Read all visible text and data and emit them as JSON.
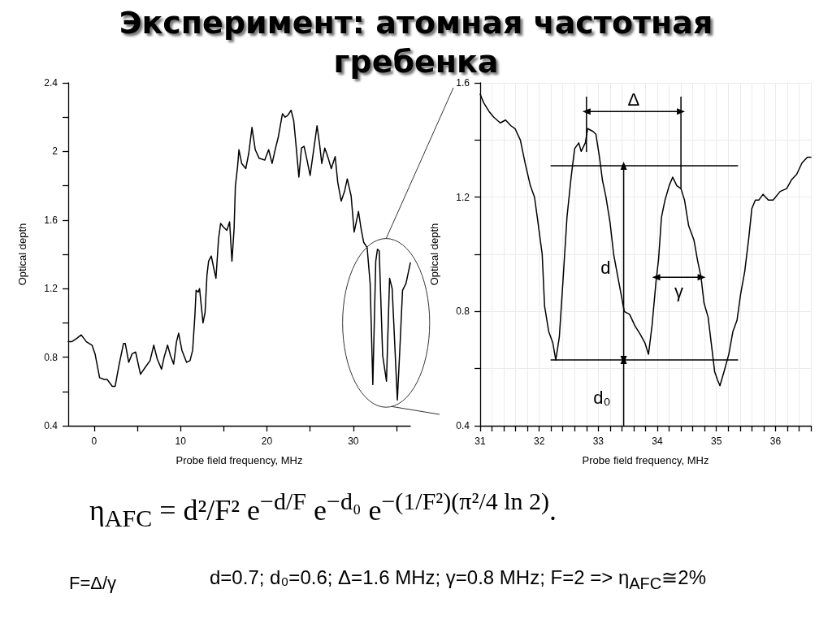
{
  "chart_data": [
    {
      "type": "line",
      "title": "Эксперимент: атомная частотная гребенка",
      "xlabel": "Probe field frequency, MHz",
      "ylabel": "Optical depth",
      "color": "#000000",
      "marker": "none",
      "grid": false,
      "x": [
        -3,
        -2.6,
        -2,
        -1.5,
        -0.9,
        -0.25,
        0.1,
        0.63,
        1.17,
        1.5,
        2.1,
        2.43,
        2.9,
        3.4,
        3.6,
        4,
        4.4,
        4.8,
        5.36,
        5.9,
        6.47,
        6.9,
        7.3,
        7.8,
        8.1,
        8.5,
        8.83,
        9.2,
        9.53,
        9.78,
        10.16,
        10.7,
        11.1,
        11.4,
        11.67,
        11.8,
        12.05,
        12.2,
        12.6,
        12.84,
        13.06,
        13.25,
        13.56,
        13.8,
        14.1,
        14.4,
        14.64,
        14.95,
        15.36,
        15.68,
        15.95,
        16.2,
        16.35,
        16.6,
        16.76,
        17.08,
        17.55,
        17.9,
        18.27,
        18.65,
        19.1,
        19.75,
        20.2,
        20.6,
        21,
        21.3,
        21.8,
        22.1,
        22.4,
        22.8,
        23.1,
        23.4,
        23.7,
        24,
        24.3,
        24.6,
        25,
        25.5,
        25.8,
        26.1,
        26.35,
        26.7,
        27.1,
        27.45,
        27.9,
        28.2,
        28.6,
        29,
        29.3,
        29.75,
        30.1,
        30.6,
        30.9,
        31.2,
        31.6,
        31.95,
        32.26,
        32.6,
        32.8,
        33,
        33.4,
        33.84,
        34.2,
        34.5,
        35.1,
        35.4,
        35.7,
        36.1,
        36.6
      ],
      "values": [
        0.89,
        0.89,
        0.91,
        0.93,
        0.89,
        0.87,
        0.82,
        0.68,
        0.67,
        0.67,
        0.63,
        0.63,
        0.76,
        0.88,
        0.88,
        0.77,
        0.82,
        0.83,
        0.7,
        0.74,
        0.78,
        0.87,
        0.79,
        0.73,
        0.8,
        0.87,
        0.81,
        0.76,
        0.89,
        0.94,
        0.84,
        0.77,
        0.78,
        0.84,
        1.05,
        1.19,
        1.18,
        1.2,
        1.0,
        1.06,
        1.28,
        1.36,
        1.39,
        1.33,
        1.26,
        1.49,
        1.58,
        1.56,
        1.54,
        1.59,
        1.36,
        1.55,
        1.8,
        1.91,
        2.01,
        1.93,
        1.9,
        1.99,
        2.14,
        2.01,
        1.96,
        1.95,
        2.01,
        1.93,
        2.02,
        2.08,
        2.22,
        2.2,
        2.21,
        2.24,
        2.18,
        2.02,
        1.85,
        2.02,
        2.03,
        1.96,
        1.86,
        2.04,
        2.15,
        2.04,
        1.93,
        2.02,
        1.96,
        1.9,
        1.97,
        1.82,
        1.71,
        1.77,
        1.84,
        1.74,
        1.53,
        1.65,
        1.55,
        1.47,
        1.44,
        1.23,
        0.64,
        1.36,
        1.43,
        1.42,
        0.81,
        0.66,
        1.26,
        1.2,
        0.55,
        0.86,
        1.19,
        1.23,
        1.35
      ],
      "xlim": [
        -3,
        36.6
      ],
      "ylim": [
        0.4,
        2.4
      ],
      "xticks": [
        0,
        {
          "value": 5,
          "label": null
        },
        10,
        {
          "value": 15,
          "label": null
        },
        20,
        {
          "value": 25,
          "label": null
        },
        30,
        {
          "value": 35,
          "label": null
        }
      ],
      "yticks": [
        0.4,
        {
          "value": 0.6,
          "label": null
        },
        0.8,
        {
          "value": 1,
          "label": null
        },
        1.2,
        {
          "value": 1.4,
          "label": null
        },
        1.6,
        {
          "value": 1.8,
          "label": null
        },
        2,
        {
          "value": 2.2,
          "label": null
        },
        2.4
      ]
    },
    {
      "type": "line",
      "xlabel": "Probe field frequency, MHz",
      "ylabel": "Optical depth",
      "marker": "none",
      "grid": true,
      "annotations": [
        "Δ",
        "d",
        "d₀",
        "γ",
        "η$_{AFC}$ = d²/F² e$^{−d/F}$ e$^{−d₀}$ e$^{−(1/F²)(π²/4 ln 2)}$.",
        "F=Δ/γ",
        "d=0.7; d₀=0.6; Δ=1.6 MHz; γ=0.8 MHz; F=2 =>  η$_{AFC}$≅2%"
      ],
      "x": [
        31,
        31.06,
        31.15,
        31.23,
        31.34,
        31.43,
        31.52,
        31.59,
        31.68,
        31.76,
        31.85,
        31.92,
        31.98,
        32.05,
        32.09,
        32.16,
        32.23,
        32.28,
        32.34,
        32.4,
        32.47,
        32.54,
        32.6,
        32.67,
        32.71,
        32.78,
        32.82,
        32.91,
        32.96,
        33.02,
        33.07,
        33.13,
        33.2,
        33.26,
        33.35,
        33.44,
        33.53,
        33.62,
        33.71,
        33.79,
        33.85,
        33.91,
        33.98,
        34.02,
        34.07,
        34.13,
        34.2,
        34.26,
        34.33,
        34.4,
        34.46,
        34.53,
        34.62,
        34.68,
        34.74,
        34.79,
        34.86,
        34.93,
        34.97,
        35.02,
        35.06,
        35.13,
        35.21,
        35.28,
        35.35,
        35.41,
        35.48,
        35.55,
        35.6,
        35.66,
        35.72,
        35.79,
        35.88,
        35.96,
        36.08,
        36.19,
        36.27,
        36.36,
        36.45,
        36.54,
        36.6
      ],
      "series": [
        {
          "color": "#000000",
          "values": [
            1.56,
            1.53,
            1.5,
            1.48,
            1.46,
            1.47,
            1.45,
            1.44,
            1.4,
            1.32,
            1.24,
            1.2,
            1.11,
            1.0,
            0.82,
            0.73,
            0.69,
            0.63,
            0.71,
            0.9,
            1.13,
            1.27,
            1.37,
            1.39,
            1.36,
            1.39,
            1.44,
            1.43,
            1.42,
            1.34,
            1.26,
            1.2,
            1.11,
            1.0,
            0.9,
            0.8,
            0.79,
            0.75,
            0.72,
            0.69,
            0.65,
            0.75,
            0.91,
            0.98,
            1.13,
            1.19,
            1.24,
            1.27,
            1.24,
            1.23,
            1.19,
            1.1,
            1.05,
            0.98,
            0.92,
            0.83,
            0.78,
            0.66,
            0.59,
            0.56,
            0.54,
            0.59,
            0.65,
            0.73,
            0.77,
            0.86,
            0.94,
            1.06,
            1.16,
            1.19,
            1.19,
            1.21,
            1.19,
            1.19,
            1.22,
            1.23,
            1.26,
            1.28,
            1.32,
            1.34,
            1.34
          ]
        },
        {
          "type": "line",
          "color": "#000000",
          "x": [
            32.2,
            35.36
          ],
          "values": [
            1.31,
            1.31
          ]
        },
        {
          "type": "line",
          "color": "#000000",
          "x": [
            32.2,
            35.36
          ],
          "values": [
            0.63,
            0.63
          ]
        },
        {
          "type": "line",
          "color": "#000000",
          "x": [
            32.8,
            32.8
          ],
          "values": [
            1.36,
            1.55
          ]
        },
        {
          "type": "line",
          "color": "#000000",
          "x": [
            34.4,
            34.4
          ],
          "values": [
            1.23,
            1.55
          ]
        },
        {
          "type": "line",
          "color": "#000000",
          "marker": "triangle",
          "x": [
            32.8,
            34.4
          ],
          "values": [
            1.5,
            1.5
          ]
        },
        {
          "type": "line",
          "color": "#000000",
          "marker": "triangle",
          "x": [
            33.43,
            33.43
          ],
          "values": [
            0.63,
            1.31
          ]
        },
        {
          "type": "line",
          "color": "#000000",
          "marker": "triangle",
          "x": [
            33.43,
            33.43
          ],
          "values": [
            0.4,
            0.63
          ]
        },
        {
          "type": "line",
          "color": "#000000",
          "marker": "triangle",
          "x": [
            33.98,
            34.75
          ],
          "values": [
            0.92,
            0.92
          ]
        }
      ],
      "xlim": [
        31,
        36.6
      ],
      "ylim": [
        0.4,
        1.6
      ],
      "xticks": [
        31,
        {
          "value": 31.2,
          "label": null
        },
        {
          "value": 31.4,
          "label": null
        },
        {
          "value": 31.6,
          "label": null
        },
        {
          "value": 31.8,
          "label": null
        },
        32,
        {
          "value": 32.2,
          "label": null
        },
        {
          "value": 32.4,
          "label": null
        },
        {
          "value": 32.6,
          "label": null
        },
        {
          "value": 32.8,
          "label": null
        },
        33,
        {
          "value": 33.2,
          "label": null
        },
        {
          "value": 33.4,
          "label": null
        },
        {
          "value": 33.6,
          "label": null
        },
        {
          "value": 33.8,
          "label": null
        },
        34,
        {
          "value": 34.2,
          "label": null
        },
        {
          "value": 34.4,
          "label": null
        },
        {
          "value": 34.6,
          "label": null
        },
        {
          "value": 34.8,
          "label": null
        },
        35,
        {
          "value": 35.2,
          "label": null
        },
        {
          "value": 35.4,
          "label": null
        },
        {
          "value": 35.6,
          "label": null
        },
        {
          "value": 35.8,
          "label": null
        },
        36,
        {
          "value": 36.2,
          "label": null
        },
        {
          "value": 36.4,
          "label": null
        },
        {
          "value": 36.6,
          "label": null
        }
      ],
      "yticks": [
        0.4,
        {
          "value": 0.6,
          "label": null
        },
        0.8,
        {
          "value": 1,
          "label": null
        },
        1.2,
        {
          "value": 1.4,
          "label": null
        },
        1.6
      ]
    }
  ]
}
